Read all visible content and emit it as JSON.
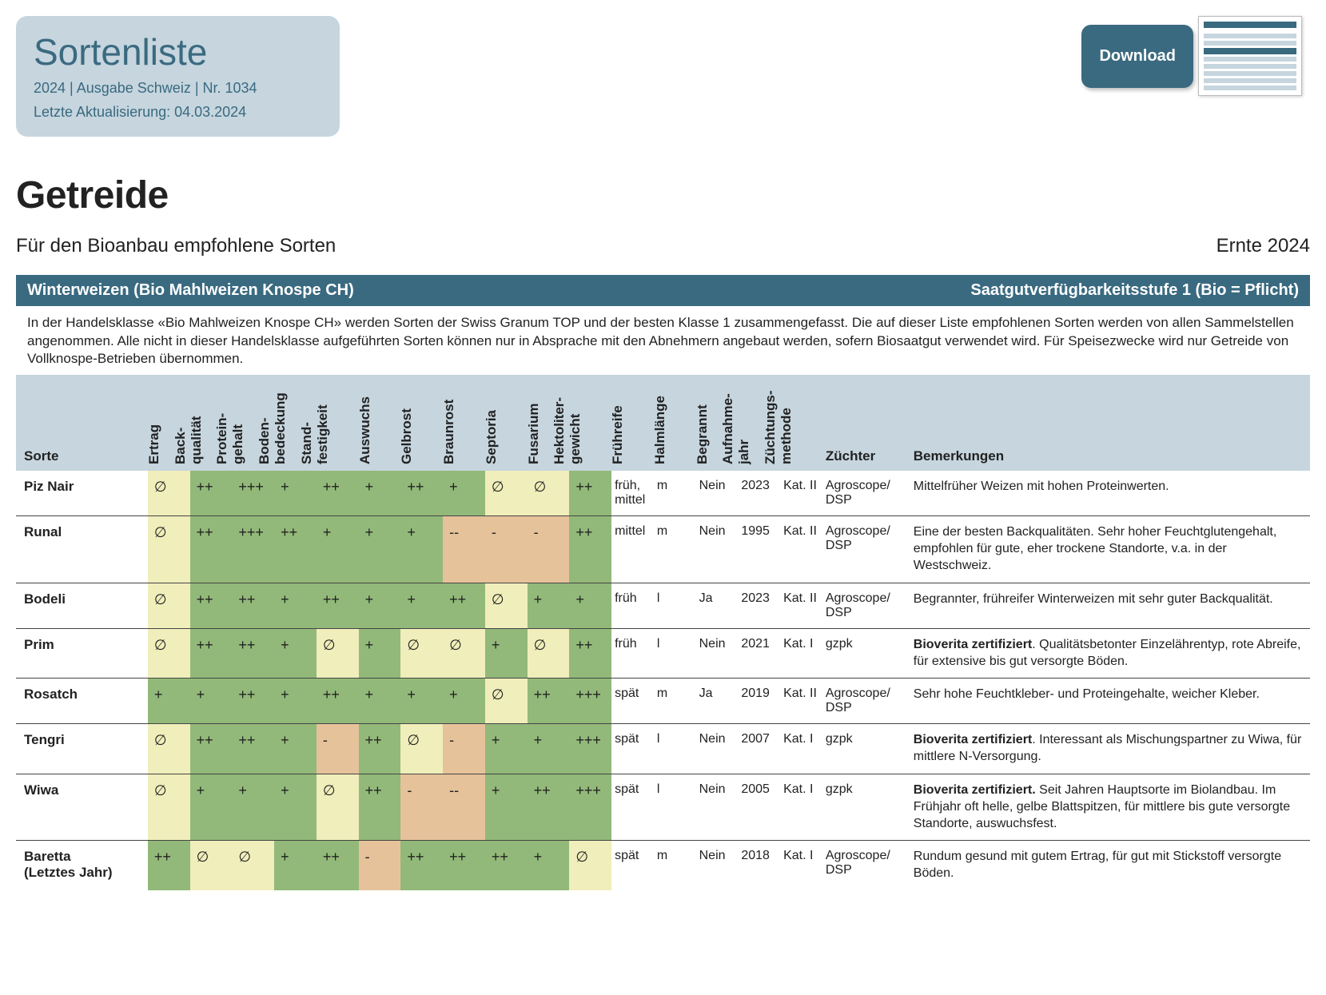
{
  "colors": {
    "header_bg": "#c6d5de",
    "bar_bg": "#3a6a80",
    "rating": {
      "+++": "#92b979",
      "++": "#92b979",
      "+": "#92b979",
      "∅": "#f0eeba",
      "-": "#e6c29a",
      "--": "#e6c29a"
    }
  },
  "header": {
    "title": "Sortenliste",
    "line1": "2024 | Ausgabe Schweiz | Nr. 1034",
    "line2": "Letzte Aktualisierung: 04.03.2024"
  },
  "download": {
    "label": "Download"
  },
  "page_title": "Getreide",
  "sub_left": "Für den Bioanbau empfohlene Sorten",
  "sub_right": "Ernte 2024",
  "section": {
    "left": "Winterweizen (Bio Mahlweizen Knospe CH)",
    "right": "Saatgutverfügbarkeitsstufe 1 (Bio = Pflicht)"
  },
  "intro": "In der Handelsklasse «Bio Mahlweizen Knospe CH» werden Sorten der Swiss Granum TOP und der besten Klasse 1 zusammengefasst. Die auf dieser Liste empfohlenen Sorten werden von allen Sammelstellen angenommen. Alle nicht in dieser Handelsklasse aufgeführten Sorten können nur in Absprache mit den Abnehmern angebaut werden, sofern Biosaatgut verwendet wird. Für Speisezwecke wird nur Getreide von Vollknospe-Betrieben übernommen.",
  "columns": {
    "sorte": "Sorte",
    "ratings": [
      "Ertrag",
      "Back-\nqualität",
      "Protein-\ngehalt",
      "Boden-\nbedeckung",
      "Stand-\nfestigkeit",
      "Auswuchs",
      "Gelbrost",
      "Braunrost",
      "Septoria",
      "Fusarium",
      "Hektoliter-\ngewicht"
    ],
    "text_cols": [
      "Frühreife",
      "Halmlänge",
      "Begrannt",
      "Aufnahme-\njahr",
      "Züchtungs-\nmethode"
    ],
    "zuechter": "Züchter",
    "remarks": "Bemerkungen"
  },
  "rows": [
    {
      "name": "Piz Nair",
      "subnote": "",
      "ratings": [
        "∅",
        "++",
        "+++",
        "+",
        "++",
        "+",
        "++",
        "+",
        "∅",
        "∅",
        "++"
      ],
      "text": [
        "früh, mittel",
        "m",
        "Nein",
        "2023",
        "Kat. II"
      ],
      "zuechter": "Agroscope/\nDSP",
      "remarks": "Mittelfrüher Weizen mit hohen Proteinwerten."
    },
    {
      "name": "Runal",
      "subnote": "",
      "ratings": [
        "∅",
        "++",
        "+++",
        "++",
        "+",
        "+",
        "+",
        "--",
        "-",
        "-",
        "++"
      ],
      "text": [
        "mittel",
        "m",
        "Nein",
        "1995",
        "Kat. II"
      ],
      "zuechter": "Agroscope/\nDSP",
      "remarks": "Eine der besten Backqualitäten. Sehr hoher Feuchtglutengehalt, empfohlen für gute, eher trockene Standorte, v.a. in der Westschweiz."
    },
    {
      "name": "Bodeli",
      "subnote": "",
      "ratings": [
        "∅",
        "++",
        "++",
        "+",
        "++",
        "+",
        "+",
        "++",
        "∅",
        "+",
        "+"
      ],
      "text": [
        "früh",
        "l",
        "Ja",
        "2023",
        "Kat. II"
      ],
      "zuechter": "Agroscope/\nDSP",
      "remarks": "Begrannter, frühreifer Winterweizen mit sehr guter Backqualität."
    },
    {
      "name": "Prim",
      "subnote": "",
      "ratings": [
        "∅",
        "++",
        "++",
        "+",
        "∅",
        "+",
        "∅",
        "∅",
        "+",
        "∅",
        "++"
      ],
      "text": [
        "früh",
        "l",
        "Nein",
        "2021",
        "Kat. I"
      ],
      "zuechter": "gzpk",
      "remarks": "<b>Bioverita zertifiziert</b>. Qualitätsbetonter Einzelährentyp, rote Abreife, für extensive bis gut versorgte Böden."
    },
    {
      "name": "Rosatch",
      "subnote": "",
      "ratings": [
        "+",
        "+",
        "++",
        "+",
        "++",
        "+",
        "+",
        "+",
        "∅",
        "++",
        "+++"
      ],
      "text": [
        "spät",
        "m",
        "Ja",
        "2019",
        "Kat. II"
      ],
      "zuechter": "Agroscope/\nDSP",
      "remarks": "Sehr hohe Feuchtkleber- und Proteingehalte, weicher Kleber."
    },
    {
      "name": "Tengri",
      "subnote": "",
      "ratings": [
        "∅",
        "++",
        "++",
        "+",
        "-",
        "++",
        "∅",
        "-",
        "+",
        "+",
        "+++"
      ],
      "text": [
        "spät",
        "l",
        "Nein",
        "2007",
        "Kat. I"
      ],
      "zuechter": "gzpk",
      "remarks": "<b>Bioverita zertifiziert</b>. Interessant als Mischungspartner zu Wiwa, für mittlere N-Versorgung."
    },
    {
      "name": "Wiwa",
      "subnote": "",
      "ratings": [
        "∅",
        "+",
        "+",
        "+",
        "∅",
        "++",
        "-",
        "--",
        "+",
        "++",
        "+++"
      ],
      "text": [
        "spät",
        "l",
        "Nein",
        "2005",
        "Kat. I"
      ],
      "zuechter": "gzpk",
      "remarks": "<b>Bioverita zertifiziert.</b> Seit Jahren Hauptsorte im Biolandbau. Im Frühjahr oft helle, gelbe Blattspitzen, für mittlere bis gute versorgte Standorte, auswuchsfest."
    },
    {
      "name": "Baretta",
      "subnote": "(Letztes Jahr)",
      "ratings": [
        "++",
        "∅",
        "∅",
        "+",
        "++",
        "-",
        "++",
        "++",
        "++",
        "+",
        "∅"
      ],
      "text": [
        "spät",
        "m",
        "Nein",
        "2018",
        "Kat. I"
      ],
      "zuechter": "Agroscope/\nDSP",
      "remarks": "Rundum gesund mit gutem Ertrag, für gut mit Stickstoff versorgte Böden."
    }
  ]
}
